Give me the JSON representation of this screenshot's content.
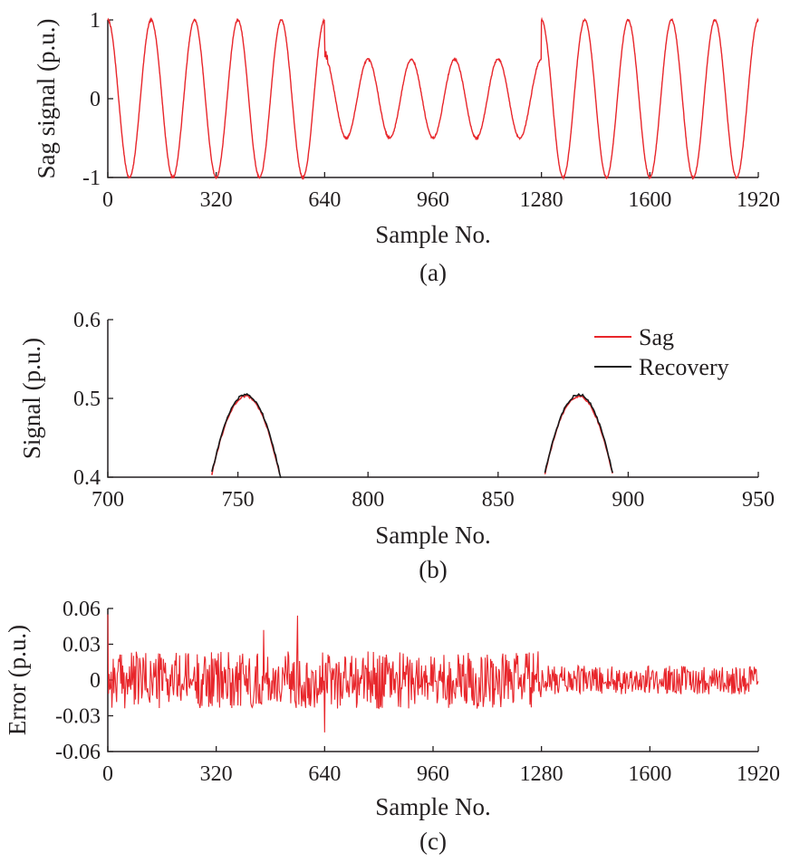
{
  "colors": {
    "sag": "#e8262b",
    "recovery": "#1a1a1a",
    "axis": "#231f20"
  },
  "chart_data": [
    {
      "panel": "a",
      "type": "line",
      "caption": "(a)",
      "xlabel": "Sample No.",
      "ylabel": "Sag signal (p.u.)",
      "xlim": [
        0,
        1920
      ],
      "ylim": [
        -1,
        1
      ],
      "xticks": [
        0,
        320,
        640,
        960,
        1280,
        1600,
        1920
      ],
      "yticks": [
        -1,
        0,
        1
      ],
      "ytick_labels": [
        "-1",
        "0",
        "1"
      ],
      "series": [
        {
          "color": "#e8262b",
          "samples_per_cycle": 128,
          "segments": [
            {
              "x_start": 0,
              "x_end": 640,
              "amplitude": 1.0
            },
            {
              "x_start": 640,
              "x_end": 1280,
              "amplitude": 0.5
            },
            {
              "x_start": 1280,
              "x_end": 1920,
              "amplitude": 1.0
            }
          ],
          "noise_pu": 0.02,
          "phase": "cosine"
        }
      ]
    },
    {
      "panel": "b",
      "type": "line",
      "caption": "(b)",
      "xlabel": "Sample No.",
      "ylabel": "Signal (p.u.)",
      "xlim": [
        700,
        950
      ],
      "ylim": [
        0.4,
        0.6
      ],
      "xticks": [
        700,
        750,
        800,
        850,
        900,
        950
      ],
      "yticks": [
        0.4,
        0.5,
        0.6
      ],
      "ytick_labels": [
        "0.4",
        "0.5",
        "0.6"
      ],
      "legend": {
        "position": "top-right",
        "entries": [
          "Sag",
          "Recovery"
        ]
      },
      "series": [
        {
          "name": "Sag",
          "color": "#e8262b",
          "peaks": [
            753,
            881
          ],
          "peak_value": 0.503
        },
        {
          "name": "Recovery",
          "color": "#1a1a1a",
          "peaks": [
            753,
            881
          ],
          "peak_value": 0.505
        }
      ]
    },
    {
      "panel": "c",
      "type": "line",
      "caption": "(c)",
      "xlabel": "Sample No.",
      "ylabel": "Error (p.u.)",
      "xlim": [
        0,
        1920
      ],
      "ylim": [
        -0.06,
        0.06
      ],
      "xticks": [
        0,
        320,
        640,
        960,
        1280,
        1600,
        1920
      ],
      "yticks": [
        -0.06,
        -0.03,
        0,
        0.03,
        0.06
      ],
      "ytick_labels": [
        "-0.06",
        "-0.03",
        "0",
        "0.03",
        "0.06"
      ],
      "series": [
        {
          "color": "#e8262b",
          "noise_envelope_pu": [
            {
              "x_start": 0,
              "x_end": 1280,
              "amplitude": 0.03
            },
            {
              "x_start": 1280,
              "x_end": 1920,
              "amplitude": 0.015
            }
          ],
          "spikes": [
            {
              "x": 560,
              "y": 0.054
            },
            {
              "x": 460,
              "y": 0.042
            },
            {
              "x": 640,
              "y": -0.044
            }
          ]
        }
      ]
    }
  ]
}
